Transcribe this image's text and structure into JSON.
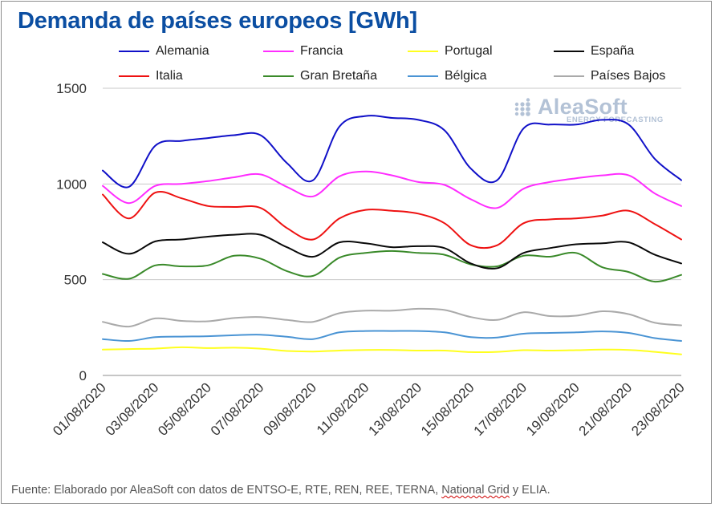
{
  "chart_data": {
    "type": "line",
    "title": "Demanda de países europeos [GWh]",
    "xlabel": "",
    "ylabel": "",
    "ylim": [
      0,
      1500
    ],
    "yticks": [
      0,
      500,
      1000,
      1500
    ],
    "x": [
      "01/08/2020",
      "02/08/2020",
      "03/08/2020",
      "04/08/2020",
      "05/08/2020",
      "06/08/2020",
      "07/08/2020",
      "08/08/2020",
      "09/08/2020",
      "10/08/2020",
      "11/08/2020",
      "12/08/2020",
      "13/08/2020",
      "14/08/2020",
      "15/08/2020",
      "16/08/2020",
      "17/08/2020",
      "18/08/2020",
      "19/08/2020",
      "20/08/2020",
      "21/08/2020",
      "22/08/2020",
      "23/08/2020"
    ],
    "xtick_labels": [
      "01/08/2020",
      "03/08/2020",
      "05/08/2020",
      "07/08/2020",
      "09/08/2020",
      "11/08/2020",
      "13/08/2020",
      "15/08/2020",
      "17/08/2020",
      "19/08/2020",
      "21/08/2020",
      "23/08/2020"
    ],
    "grid": true,
    "legend_position": "top",
    "series": [
      {
        "name": "Alemania",
        "color": "#1010c8",
        "values": [
          1070,
          985,
          1200,
          1225,
          1240,
          1255,
          1255,
          1110,
          1020,
          1300,
          1355,
          1345,
          1335,
          1280,
          1080,
          1020,
          1290,
          1310,
          1310,
          1335,
          1310,
          1130,
          1020
        ]
      },
      {
        "name": "Francia",
        "color": "#ff2dff",
        "values": [
          990,
          900,
          990,
          1000,
          1015,
          1035,
          1050,
          985,
          935,
          1040,
          1065,
          1045,
          1010,
          995,
          920,
          875,
          975,
          1010,
          1030,
          1045,
          1045,
          950,
          885
        ]
      },
      {
        "name": "Portugal",
        "color": "#ffff1e",
        "values": [
          135,
          138,
          140,
          147,
          143,
          145,
          140,
          128,
          125,
          130,
          133,
          133,
          130,
          130,
          122,
          123,
          132,
          130,
          132,
          135,
          133,
          123,
          110
        ]
      },
      {
        "name": "España",
        "color": "#0a0a0a",
        "values": [
          695,
          635,
          700,
          710,
          725,
          735,
          735,
          670,
          620,
          695,
          690,
          670,
          675,
          665,
          585,
          560,
          640,
          665,
          685,
          690,
          695,
          630,
          585
        ]
      },
      {
        "name": "Italia",
        "color": "#ee1111",
        "values": [
          945,
          820,
          955,
          925,
          885,
          880,
          875,
          770,
          710,
          820,
          865,
          860,
          845,
          795,
          680,
          680,
          795,
          815,
          820,
          835,
          860,
          790,
          710
        ]
      },
      {
        "name": "Gran Bretaña",
        "color": "#3a8a2a",
        "values": [
          530,
          505,
          575,
          570,
          575,
          625,
          610,
          545,
          520,
          615,
          640,
          650,
          640,
          630,
          580,
          570,
          625,
          620,
          640,
          565,
          540,
          490,
          525
        ]
      },
      {
        "name": "Bélgica",
        "color": "#4a94d4",
        "values": [
          190,
          180,
          200,
          203,
          205,
          210,
          213,
          202,
          190,
          225,
          232,
          232,
          232,
          225,
          200,
          198,
          218,
          222,
          225,
          230,
          222,
          195,
          180
        ]
      },
      {
        "name": "Países Bajos",
        "color": "#aaaaaa",
        "values": [
          280,
          255,
          298,
          285,
          283,
          300,
          305,
          290,
          280,
          325,
          338,
          338,
          348,
          342,
          305,
          290,
          330,
          310,
          312,
          335,
          320,
          275,
          262
        ]
      }
    ]
  },
  "brand": {
    "name": "AleaSoft",
    "tagline": "ENERGY FORECASTING"
  },
  "source": {
    "prefix": "Fuente: Elaborado por AleaSoft con datos de ENTSO-E, RTE, REN, REE, TERNA, ",
    "highlighted": "National Grid",
    "suffix": " y ELIA."
  },
  "colors": {
    "title": "#0b4ea2",
    "grid": "#c8c8c8",
    "brand": "#b3c2d6"
  }
}
